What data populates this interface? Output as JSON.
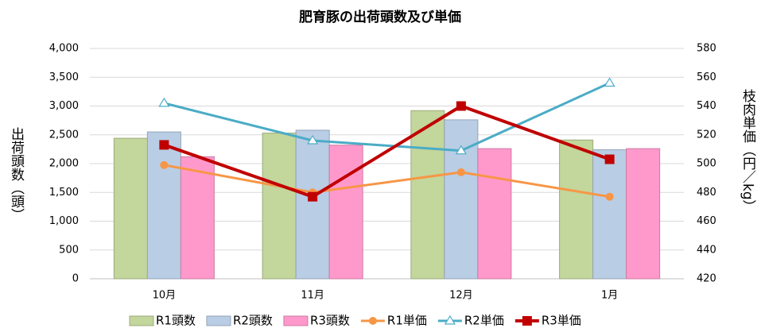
{
  "chart_data": {
    "type": "combo",
    "title": "肥育豚の出荷頭数及び単価",
    "y_label": "出荷頭数（頭）",
    "y2_label": "枝肉単価（円／kg）",
    "categories": [
      "10月",
      "11月",
      "12月",
      "1月"
    ],
    "ylim": [
      0,
      4000
    ],
    "yticks": [
      0,
      500,
      {
        "value": 1000,
        "label": "1,000"
      },
      {
        "value": 1500,
        "label": "1,500"
      },
      {
        "value": 2000,
        "label": "2,000"
      },
      {
        "value": 2500,
        "label": "2,500"
      },
      {
        "value": 3000,
        "label": "3,000"
      },
      {
        "value": 3500,
        "label": "3,500"
      },
      {
        "value": 4000,
        "label": "4,000"
      }
    ],
    "y2lim": [
      420,
      580
    ],
    "y2ticks": [
      420,
      440,
      460,
      480,
      500,
      520,
      540,
      560,
      580
    ],
    "grid": true,
    "series": [
      {
        "name": "R1頭数",
        "type": "bar",
        "color": "#c3d69b",
        "values": [
          2440,
          2530,
          2920,
          2410
        ]
      },
      {
        "name": "R2頭数",
        "type": "bar",
        "color": "#b9cde5",
        "values": [
          2550,
          2580,
          2760,
          2240
        ]
      },
      {
        "name": "R3頭数",
        "type": "bar",
        "color": "#ff99cc",
        "values": [
          2120,
          2320,
          2260,
          2260
        ]
      },
      {
        "name": "R1単価",
        "type": "line",
        "axis": "y2",
        "marker": "circle",
        "color": "#f79646",
        "values": [
          499,
          480,
          494,
          477
        ]
      },
      {
        "name": "R2単価",
        "type": "line",
        "axis": "y2",
        "marker": "triangle",
        "color": "#4bacc6",
        "values": [
          542,
          516,
          509,
          556
        ]
      },
      {
        "name": "R3単価",
        "type": "line",
        "axis": "y2",
        "marker": "square",
        "color": "#c00000",
        "values": [
          513,
          477,
          540,
          503
        ]
      }
    ]
  }
}
